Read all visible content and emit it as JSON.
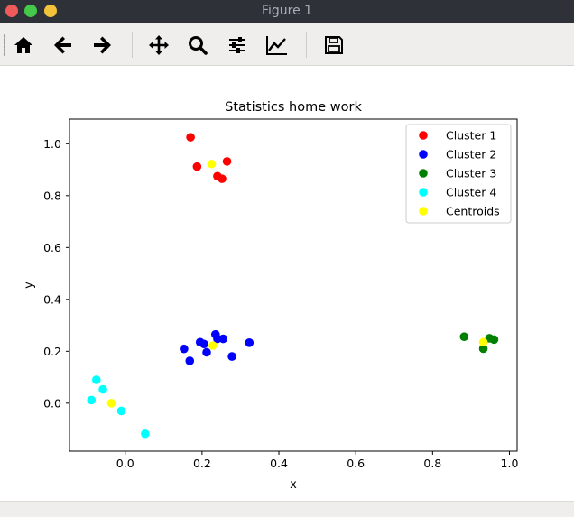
{
  "window": {
    "title": "Figure 1"
  },
  "toolbar": {
    "buttons": [
      {
        "name": "home-icon",
        "label": "Home"
      },
      {
        "name": "back-icon",
        "label": "Back"
      },
      {
        "name": "forward-icon",
        "label": "Forward"
      },
      {
        "name": "pan-icon",
        "label": "Pan"
      },
      {
        "name": "zoom-icon",
        "label": "Zoom"
      },
      {
        "name": "subplots-icon",
        "label": "Configure subplots"
      },
      {
        "name": "edit-axis-icon",
        "label": "Edit curve lines and axes"
      },
      {
        "name": "save-icon",
        "label": "Save"
      }
    ]
  },
  "chart_data": {
    "type": "scatter",
    "title": "Statistics home work",
    "xlabel": "x",
    "ylabel": "y",
    "xlim": [
      -0.145,
      1.02
    ],
    "ylim": [
      -0.185,
      1.095
    ],
    "xticks": [
      0.0,
      0.2,
      0.4,
      0.6,
      0.8,
      1.0
    ],
    "xtick_labels": [
      "0.0",
      "0.2",
      "0.4",
      "0.6",
      "0.8",
      "1.0"
    ],
    "yticks": [
      0.0,
      0.2,
      0.4,
      0.6,
      0.8,
      1.0
    ],
    "ytick_labels": [
      "0.0",
      "0.2",
      "0.4",
      "0.6",
      "0.8",
      "1.0"
    ],
    "grid": false,
    "legend_position": "top-right",
    "series": [
      {
        "name": "Cluster 1",
        "color": "#ff0000",
        "points": [
          [
            0.17,
            1.025
          ],
          [
            0.187,
            0.912
          ],
          [
            0.24,
            0.875
          ],
          [
            0.252,
            0.865
          ],
          [
            0.265,
            0.932
          ]
        ]
      },
      {
        "name": "Cluster 2",
        "color": "#0000ff",
        "points": [
          [
            0.153,
            0.209
          ],
          [
            0.168,
            0.163
          ],
          [
            0.195,
            0.235
          ],
          [
            0.205,
            0.228
          ],
          [
            0.212,
            0.196
          ],
          [
            0.235,
            0.265
          ],
          [
            0.24,
            0.248
          ],
          [
            0.255,
            0.248
          ],
          [
            0.278,
            0.18
          ],
          [
            0.323,
            0.233
          ]
        ]
      },
      {
        "name": "Cluster 3",
        "color": "#008000",
        "points": [
          [
            0.882,
            0.256
          ],
          [
            0.932,
            0.21
          ],
          [
            0.948,
            0.25
          ],
          [
            0.96,
            0.245
          ]
        ]
      },
      {
        "name": "Cluster 4",
        "color": "#00ffff",
        "points": [
          [
            -0.088,
            0.012
          ],
          [
            -0.075,
            0.09
          ],
          [
            -0.058,
            0.053
          ],
          [
            -0.01,
            -0.03
          ],
          [
            0.052,
            -0.118
          ]
        ]
      },
      {
        "name": "Centroids",
        "color": "#ffff00",
        "points": [
          [
            0.225,
            0.922
          ],
          [
            0.228,
            0.222
          ],
          [
            -0.036,
            0.0
          ],
          [
            0.932,
            0.235
          ]
        ]
      }
    ]
  }
}
